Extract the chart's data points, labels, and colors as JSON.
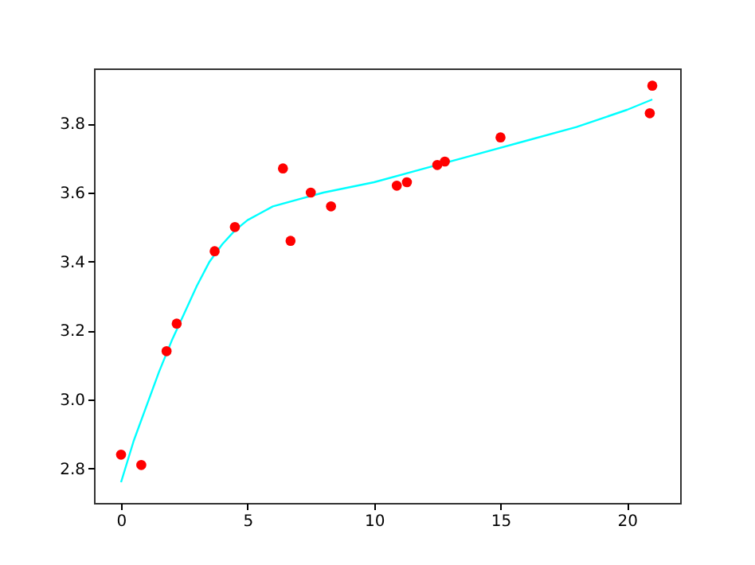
{
  "chart_data": {
    "type": "scatter",
    "xlim": [
      -1.07,
      22.1
    ],
    "ylim": [
      2.7,
      3.96
    ],
    "xticks": [
      0,
      5,
      10,
      15,
      20
    ],
    "yticks": [
      2.8,
      {
        "value": 3,
        "label": "3.0"
      },
      3.2,
      3.4,
      3.6,
      3.8
    ],
    "grid": false,
    "series": [
      {
        "marker": "circle",
        "color": "#ff0000",
        "x": [
          0,
          0.8,
          1.8,
          2.2,
          3.7,
          4.5,
          6.4,
          6.7,
          7.5,
          8.3,
          10.9,
          11.3,
          12.5,
          12.8,
          15.0,
          20.9,
          21.0
        ],
        "values": [
          2.84,
          2.81,
          3.14,
          3.22,
          3.43,
          3.5,
          3.67,
          3.46,
          3.6,
          3.56,
          3.62,
          3.63,
          3.68,
          3.69,
          3.76,
          3.83,
          3.91
        ]
      },
      {
        "type": "line",
        "color": "#00ffff",
        "x": [
          0,
          0.5,
          1,
          1.5,
          2,
          2.5,
          3,
          3.5,
          4,
          4.5,
          5,
          5.5,
          6,
          7,
          8,
          10,
          12,
          14,
          16,
          18,
          20,
          21
        ],
        "values": [
          2.76,
          2.88,
          2.98,
          3.08,
          3.17,
          3.25,
          3.33,
          3.4,
          3.45,
          3.49,
          3.52,
          3.54,
          3.56,
          3.58,
          3.6,
          3.63,
          3.67,
          3.71,
          3.75,
          3.79,
          3.84,
          3.87
        ]
      }
    ]
  }
}
